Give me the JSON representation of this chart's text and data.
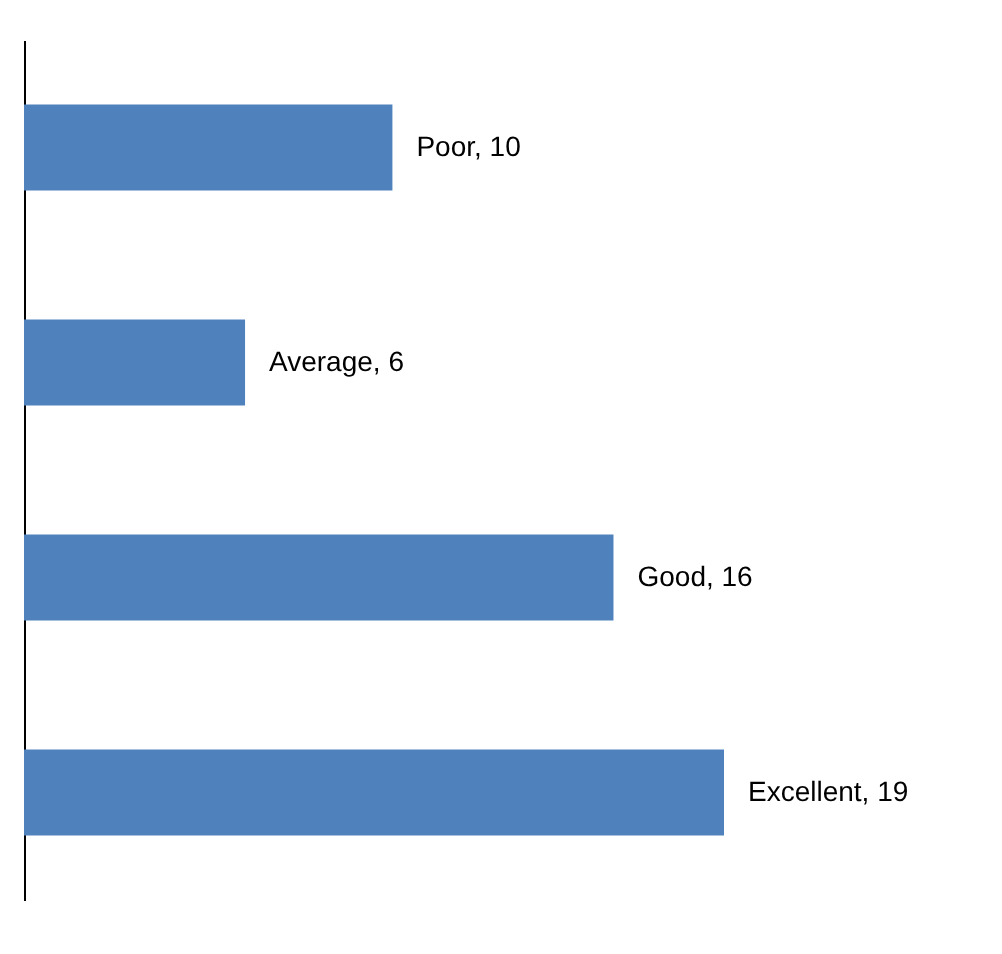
{
  "chart_data": {
    "type": "bar",
    "orientation": "horizontal",
    "categories": [
      null,
      null,
      null,
      null
    ],
    "values": [
      10,
      6,
      16,
      19
    ],
    "color": "#4f81bd",
    "value_labels": [
      "Poor, 10",
      "Average, 6",
      "Good, 16",
      "Excellent, 19"
    ],
    "tick_labels": false
  }
}
